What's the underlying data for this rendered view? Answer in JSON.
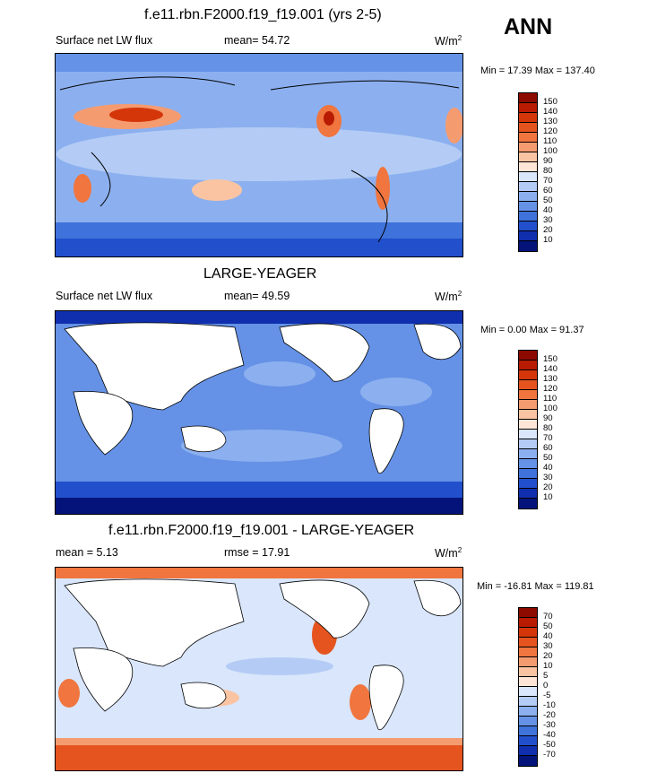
{
  "ann_label": "ANN",
  "panels": [
    {
      "title": "f.e11.rbn.F2000.f19_f19.001 (yrs 2-5)",
      "left_label": "Surface net LW flux",
      "center_label": "mean=  54.72",
      "units": "W/m",
      "units_sup": "2",
      "minmax": "Min =  17.39 Max = 137.40",
      "colorbar_labels": [
        "150",
        "140",
        "130",
        "120",
        "110",
        "100",
        "90",
        "80",
        "70",
        "60",
        "50",
        "40",
        "30",
        "20",
        "10"
      ],
      "colorbar_colors": [
        "#8c0a00",
        "#b81a02",
        "#d4360a",
        "#e5541f",
        "#f0753e",
        "#f59b70",
        "#fac4a3",
        "#fde6d6",
        "#d9e6fb",
        "#b4ccf5",
        "#8cb0ef",
        "#6592e6",
        "#3f72db",
        "#2250cc",
        "#0f2fae",
        "#04137a"
      ]
    },
    {
      "title": "LARGE-YEAGER",
      "left_label": "Surface net LW flux",
      "center_label": "mean=  49.59",
      "units": "W/m",
      "units_sup": "2",
      "minmax": "Min =   0.00 Max =  91.37",
      "colorbar_labels": [
        "150",
        "140",
        "130",
        "120",
        "110",
        "100",
        "90",
        "80",
        "70",
        "60",
        "50",
        "40",
        "30",
        "20",
        "10"
      ],
      "colorbar_colors": [
        "#8c0a00",
        "#b81a02",
        "#d4360a",
        "#e5541f",
        "#f0753e",
        "#f59b70",
        "#fac4a3",
        "#fde6d6",
        "#d9e6fb",
        "#b4ccf5",
        "#8cb0ef",
        "#6592e6",
        "#3f72db",
        "#2250cc",
        "#0f2fae",
        "#04137a"
      ]
    },
    {
      "title": "f.e11.rbn.F2000.f19_f19.001 - LARGE-YEAGER",
      "left_label": "mean =   5.13",
      "center_label": "rmse =  17.91",
      "units": "W/m",
      "units_sup": "2",
      "minmax": "Min = -16.81 Max = 119.81",
      "colorbar_labels": [
        "70",
        "50",
        "40",
        "30",
        "20",
        "10",
        "5",
        "0",
        "-5",
        "-10",
        "-20",
        "-30",
        "-40",
        "-50",
        "-70"
      ],
      "colorbar_colors": [
        "#8c0a00",
        "#b81a02",
        "#d4360a",
        "#e5541f",
        "#f0753e",
        "#f59b70",
        "#fac4a3",
        "#fde6d6",
        "#d9e6fb",
        "#b4ccf5",
        "#8cb0ef",
        "#6592e6",
        "#3f72db",
        "#2250cc",
        "#0f2fae",
        "#04137a"
      ]
    }
  ]
}
